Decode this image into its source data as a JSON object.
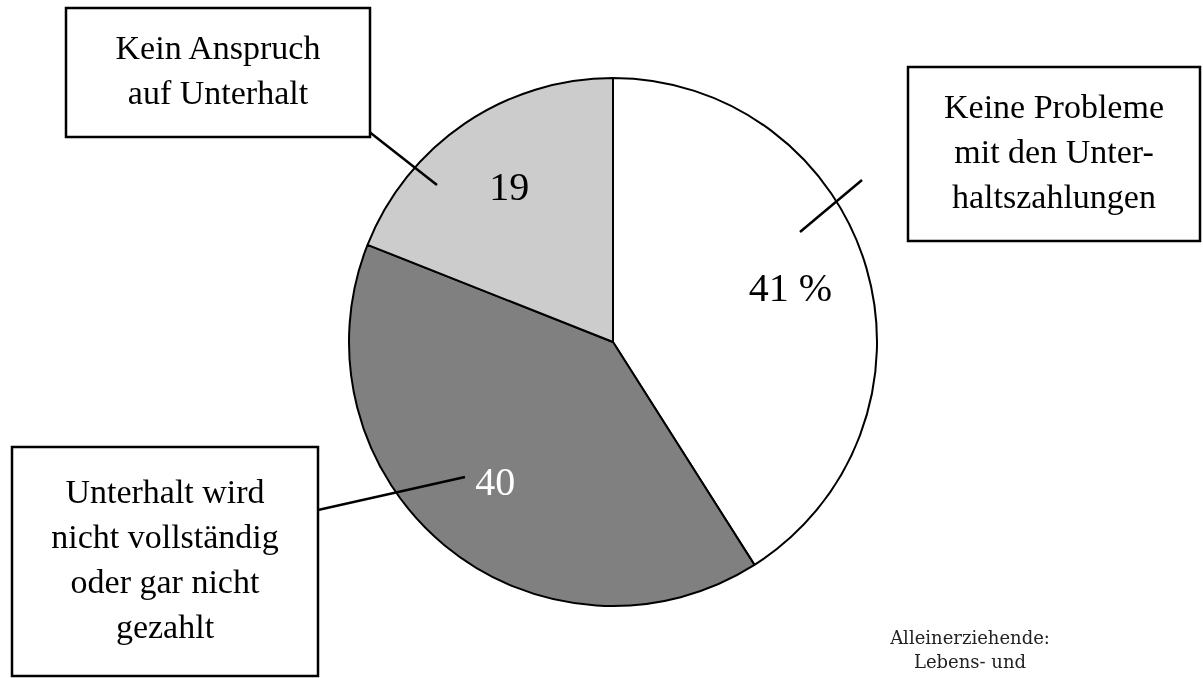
{
  "chart_data": {
    "type": "pie",
    "categories": [
      "Keine Probleme\nmit den Unter-\nhaltszahlungen",
      "Unterhalt wird\nnicht vollständig\noder gar nicht\ngezahlt",
      "Kein Anspruch\nauf Unterhalt"
    ],
    "values": [
      41,
      40,
      19
    ],
    "value_labels": [
      "41 %",
      "40",
      "19"
    ],
    "colors": [
      "#ffffff",
      "#808080",
      "#cccccc"
    ],
    "legend": false,
    "annotations": [
      "Alleinerziehende:\nLebens- und"
    ]
  }
}
